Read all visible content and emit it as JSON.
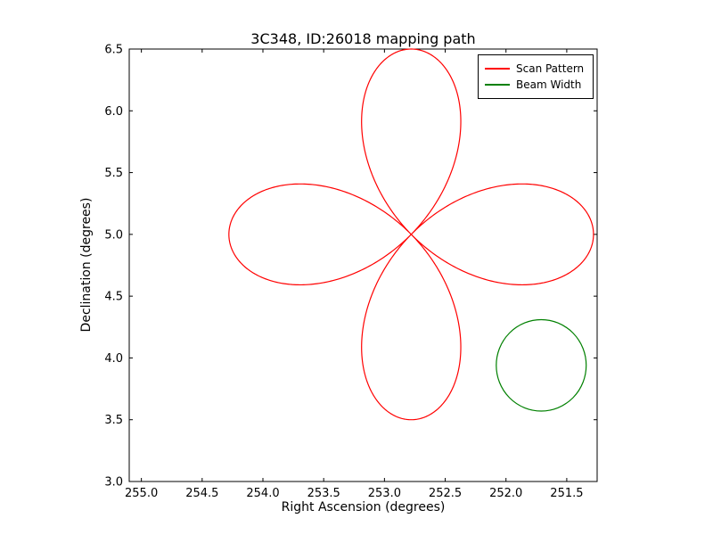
{
  "chart_data": {
    "type": "line",
    "title": "3C348, ID:26018 mapping path",
    "xlabel": "Right Ascension (degrees)",
    "ylabel": "Declination (degrees)",
    "x_axis": {
      "lim": [
        255.1,
        251.25
      ],
      "inverted": true,
      "ticks": [
        255.0,
        254.5,
        254.0,
        253.5,
        253.0,
        252.5,
        252.0,
        251.5
      ],
      "tick_labels": [
        "255.0",
        "254.5",
        "254.0",
        "253.5",
        "253.0",
        "252.5",
        "252.0",
        "251.5"
      ]
    },
    "y_axis": {
      "lim": [
        3.0,
        6.5
      ],
      "ticks": [
        3.0,
        3.5,
        4.0,
        4.5,
        5.0,
        5.5,
        6.0,
        6.5
      ],
      "tick_labels": [
        "3.0",
        "3.5",
        "4.0",
        "4.5",
        "5.0",
        "5.5",
        "6.0",
        "6.5"
      ]
    },
    "grid": false,
    "legend": {
      "position": "upper right",
      "entries": [
        {
          "label": "Scan Pattern",
          "color": "#ff0000"
        },
        {
          "label": "Beam Width",
          "color": "#008000"
        }
      ]
    },
    "series": [
      {
        "name": "Scan Pattern",
        "kind": "rose_curve",
        "equation": "r = amplitude * cos(2*theta), four petals about center",
        "color": "#ff0000",
        "center": [
          252.78,
          5.0
        ],
        "amplitude_deg": 1.5,
        "petals": 4,
        "theta_start_rad": -0.06,
        "theta_end_rad": 6.2832,
        "extents": {
          "ra_min": 251.28,
          "ra_max": 254.28,
          "dec_min": 3.5,
          "dec_max": 6.5
        }
      },
      {
        "name": "Beam Width",
        "kind": "circle",
        "color": "#008000",
        "center": [
          251.71,
          3.94
        ],
        "radius_deg": 0.37
      }
    ]
  }
}
